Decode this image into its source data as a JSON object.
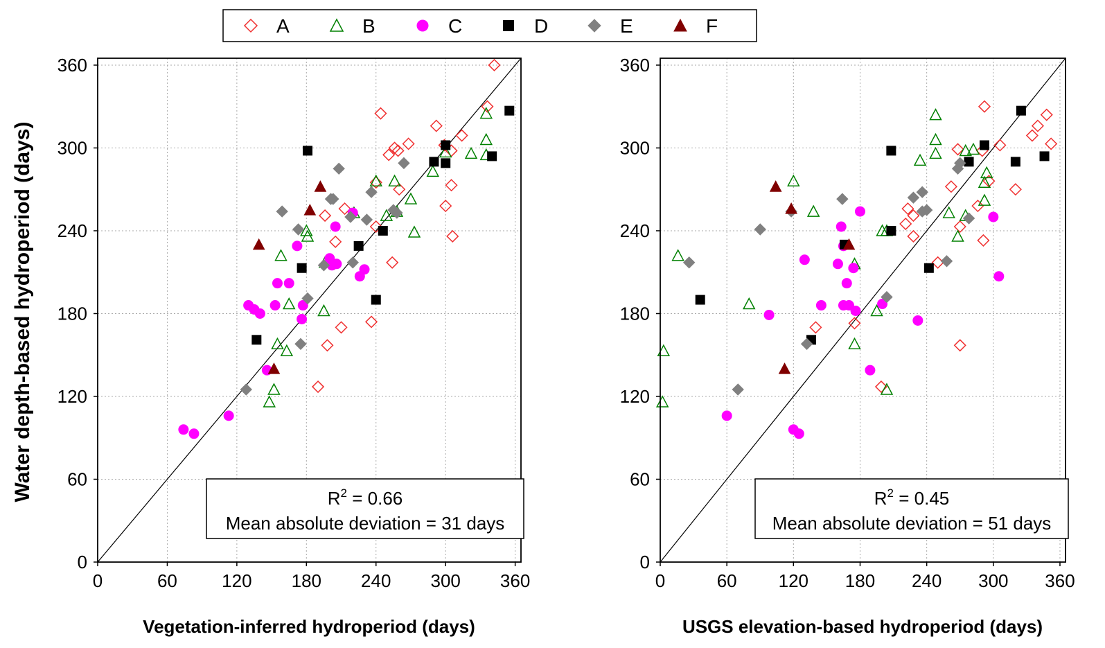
{
  "legend": {
    "entries": [
      {
        "label": "A",
        "marker": "diamond-open",
        "color": "#f03030"
      },
      {
        "label": "B",
        "marker": "triangle-open",
        "color": "#008000"
      },
      {
        "label": "C",
        "marker": "circle-filled",
        "color": "#ff00ff"
      },
      {
        "label": "D",
        "marker": "square-filled",
        "color": "#000000"
      },
      {
        "label": "E",
        "marker": "diamond-filled",
        "color": "#808080"
      },
      {
        "label": "F",
        "marker": "triangle-filled",
        "color": "#800000"
      }
    ]
  },
  "shared": {
    "ylabel": "Water depth-based hydroperiod (days)",
    "ticks": [
      "0",
      "60",
      "120",
      "180",
      "240",
      "300",
      "360"
    ],
    "tick_values": [
      0,
      60,
      120,
      180,
      240,
      300,
      360
    ],
    "range": [
      0,
      365
    ]
  },
  "chart_data": [
    {
      "type": "scatter",
      "xlabel": "Vegetation-inferred hydroperiod (days)",
      "ylabel": "Water depth-based hydroperiod (days)",
      "xlim": [
        0,
        365
      ],
      "ylim": [
        0,
        365
      ],
      "grid": true,
      "reference_line": "1:1",
      "annotation": {
        "r2_prefix": "R",
        "r2_exp": "2",
        "r2_value": " = 0.66",
        "mad": "Mean absolute deviation = 31 days"
      },
      "series": [
        {
          "name": "A",
          "points": [
            [
              342,
              360
            ],
            [
              244,
              325
            ],
            [
              292,
              316
            ],
            [
              336,
              330
            ],
            [
              314,
              309
            ],
            [
              268,
              303
            ],
            [
              256,
              300
            ],
            [
              259,
              298
            ],
            [
              251,
              295
            ],
            [
              299,
              302
            ],
            [
              305,
              298
            ],
            [
              240,
              275
            ],
            [
              260,
              270
            ],
            [
              305,
              273
            ],
            [
              300,
              258
            ],
            [
              213,
              256
            ],
            [
              196,
              251
            ],
            [
              205,
              232
            ],
            [
              240,
              243
            ],
            [
              306,
              236
            ],
            [
              254,
              217
            ],
            [
              210,
              170
            ],
            [
              236,
              174
            ],
            [
              198,
              157
            ],
            [
              190,
              127
            ]
          ]
        },
        {
          "name": "B",
          "points": [
            [
              335,
              325
            ],
            [
              335,
              306
            ],
            [
              322,
              296
            ],
            [
              335,
              295
            ],
            [
              300,
              297
            ],
            [
              289,
              283
            ],
            [
              240,
              276
            ],
            [
              256,
              276
            ],
            [
              270,
              263
            ],
            [
              221,
              253
            ],
            [
              258,
              254
            ],
            [
              249,
              251
            ],
            [
              273,
              239
            ],
            [
              180,
              240
            ],
            [
              181,
              236
            ],
            [
              158,
              222
            ],
            [
              196,
              217
            ],
            [
              165,
              187
            ],
            [
              195,
              182
            ],
            [
              155,
              158
            ],
            [
              163,
              153
            ],
            [
              152,
              125
            ],
            [
              148,
              116
            ]
          ]
        },
        {
          "name": "C",
          "points": [
            [
              220,
              253
            ],
            [
              205,
              243
            ],
            [
              172,
              229
            ],
            [
              200,
              220
            ],
            [
              202,
              215
            ],
            [
              206,
              216
            ],
            [
              230,
              212
            ],
            [
              226,
              207
            ],
            [
              155,
              202
            ],
            [
              165,
              202
            ],
            [
              130,
              186
            ],
            [
              135,
              183
            ],
            [
              140,
              180
            ],
            [
              153,
              186
            ],
            [
              177,
              186
            ],
            [
              176,
              176
            ],
            [
              146,
              139
            ],
            [
              113,
              106
            ],
            [
              74,
              96
            ],
            [
              83,
              93
            ]
          ]
        },
        {
          "name": "D",
          "points": [
            [
              355,
              327
            ],
            [
              340,
              294
            ],
            [
              300,
              302
            ],
            [
              290,
              290
            ],
            [
              300,
              289
            ],
            [
              181,
              298
            ],
            [
              246,
              240
            ],
            [
              225,
              229
            ],
            [
              176,
              213
            ],
            [
              240,
              190
            ],
            [
              137,
              161
            ]
          ]
        },
        {
          "name": "E",
          "points": [
            [
              208,
              285
            ],
            [
              264,
              289
            ],
            [
              255,
              255
            ],
            [
              201,
              263
            ],
            [
              203,
              263
            ],
            [
              258,
              253
            ],
            [
              218,
              250
            ],
            [
              236,
              268
            ],
            [
              159,
              254
            ],
            [
              232,
              248
            ],
            [
              173,
              241
            ],
            [
              195,
              215
            ],
            [
              220,
              217
            ],
            [
              181,
              191
            ],
            [
              175,
              158
            ],
            [
              128,
              125
            ]
          ]
        },
        {
          "name": "F",
          "points": [
            [
              192,
              272
            ],
            [
              183,
              255
            ],
            [
              139,
              230
            ],
            [
              152,
              140
            ]
          ]
        }
      ]
    },
    {
      "type": "scatter",
      "xlabel": "USGS elevation-based hydroperiod (days)",
      "ylabel": "",
      "xlim": [
        0,
        365
      ],
      "ylim": [
        0,
        365
      ],
      "grid": true,
      "reference_line": "1:1",
      "annotation": {
        "r2_prefix": "R",
        "r2_exp": "2",
        "r2_value": " = 0.45",
        "mad": "Mean absolute deviation = 51 days"
      },
      "series": [
        {
          "name": "A",
          "points": [
            [
              292,
              330
            ],
            [
              348,
              324
            ],
            [
              340,
              316
            ],
            [
              335,
              309
            ],
            [
              352,
              303
            ],
            [
              306,
              302
            ],
            [
              290,
              298
            ],
            [
              268,
              299
            ],
            [
              296,
              276
            ],
            [
              320,
              270
            ],
            [
              262,
              272
            ],
            [
              223,
              256
            ],
            [
              228,
              251
            ],
            [
              221,
              245
            ],
            [
              228,
              236
            ],
            [
              270,
              243
            ],
            [
              286,
              258
            ],
            [
              291,
              233
            ],
            [
              250,
              217
            ],
            [
              175,
              173
            ],
            [
              140,
              170
            ],
            [
              270,
              157
            ],
            [
              199,
              127
            ]
          ]
        },
        {
          "name": "B",
          "points": [
            [
              248,
              324
            ],
            [
              248,
              306
            ],
            [
              248,
              296
            ],
            [
              234,
              291
            ],
            [
              275,
              298
            ],
            [
              282,
              299
            ],
            [
              294,
              282
            ],
            [
              292,
              275
            ],
            [
              292,
              262
            ],
            [
              120,
              276
            ],
            [
              138,
              254
            ],
            [
              260,
              253
            ],
            [
              275,
              251
            ],
            [
              268,
              236
            ],
            [
              200,
              240
            ],
            [
              204,
              240
            ],
            [
              16,
              222
            ],
            [
              175,
              216
            ],
            [
              80,
              187
            ],
            [
              195,
              182
            ],
            [
              175,
              158
            ],
            [
              3,
              153
            ],
            [
              2,
              116
            ],
            [
              204,
              125
            ]
          ]
        },
        {
          "name": "C",
          "points": [
            [
              180,
              254
            ],
            [
              163,
              243
            ],
            [
              174,
              213
            ],
            [
              130,
              219
            ],
            [
              160,
              216
            ],
            [
              165,
              229
            ],
            [
              168,
              202
            ],
            [
              300,
              250
            ],
            [
              305,
              207
            ],
            [
              145,
              186
            ],
            [
              165,
              186
            ],
            [
              170,
              186
            ],
            [
              176,
              182
            ],
            [
              200,
              187
            ],
            [
              98,
              179
            ],
            [
              232,
              175
            ],
            [
              189,
              139
            ],
            [
              60,
              106
            ],
            [
              120,
              96
            ],
            [
              125,
              93
            ]
          ]
        },
        {
          "name": "D",
          "points": [
            [
              325,
              327
            ],
            [
              292,
              302
            ],
            [
              346,
              294
            ],
            [
              278,
              290
            ],
            [
              320,
              290
            ],
            [
              208,
              298
            ],
            [
              208,
              240
            ],
            [
              166,
              230
            ],
            [
              242,
              213
            ],
            [
              36,
              190
            ],
            [
              136,
              161
            ]
          ]
        },
        {
          "name": "E",
          "points": [
            [
              270,
              289
            ],
            [
              268,
              285
            ],
            [
              228,
              264
            ],
            [
              236,
              268
            ],
            [
              164,
              263
            ],
            [
              118,
              254
            ],
            [
              236,
              254
            ],
            [
              240,
              255
            ],
            [
              278,
              249
            ],
            [
              90,
              241
            ],
            [
              26,
              217
            ],
            [
              258,
              218
            ],
            [
              204,
              192
            ],
            [
              132,
              158
            ],
            [
              70,
              125
            ]
          ]
        },
        {
          "name": "F",
          "points": [
            [
              104,
              272
            ],
            [
              118,
              256
            ],
            [
              170,
              230
            ],
            [
              112,
              140
            ]
          ]
        }
      ]
    }
  ]
}
